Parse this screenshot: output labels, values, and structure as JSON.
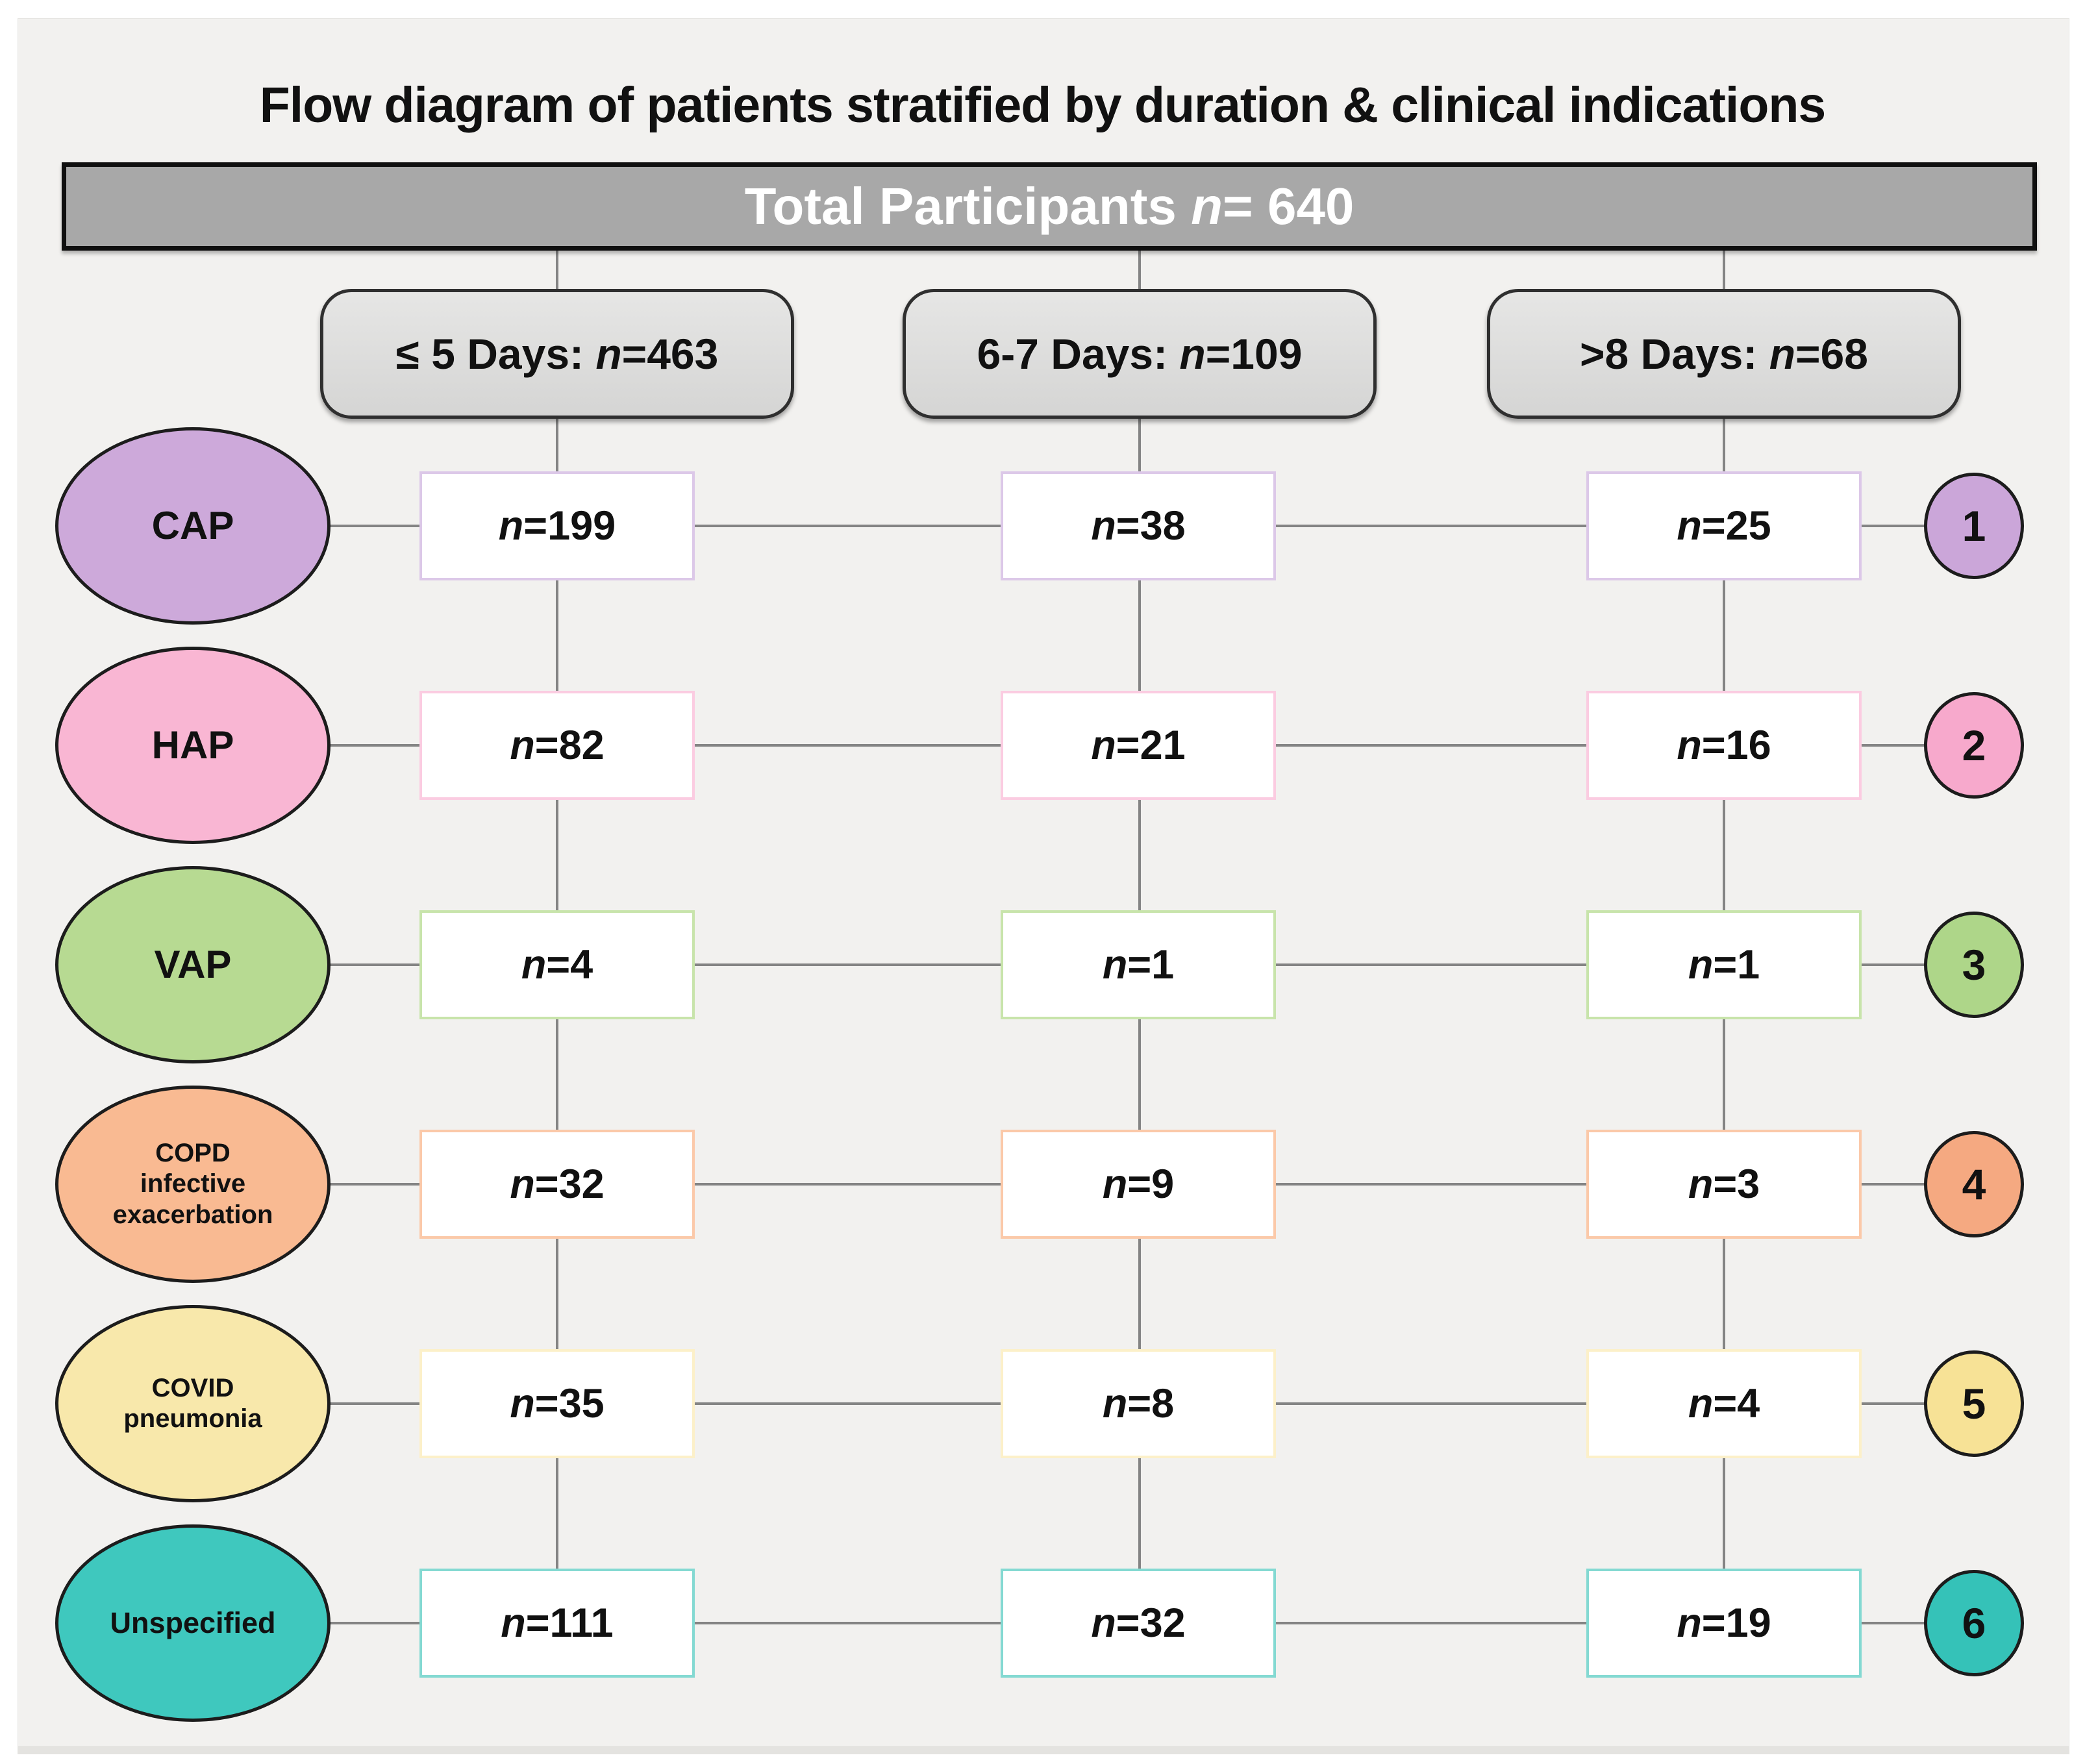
{
  "title": "Flow diagram of patients stratified by duration & clinical indications",
  "banner": {
    "prefix": "Total Participants ",
    "n_value": "n= 640"
  },
  "duration_groups": [
    {
      "prefix": "≤ 5 Days: ",
      "n_value": "n=463"
    },
    {
      "prefix": "6-7 Days: ",
      "n_value": "n=109"
    },
    {
      "prefix": ">8 Days: ",
      "n_value": "n=68"
    }
  ],
  "rows": [
    {
      "label_lines": [
        "CAP"
      ],
      "number": "1",
      "ellipse_fill": "#cda9da",
      "circle_fill": "#cba6d9",
      "box_border": "#dcc8e8",
      "cells": [
        "n=199",
        "n=38",
        "n=25"
      ]
    },
    {
      "label_lines": [
        "HAP"
      ],
      "number": "2",
      "ellipse_fill": "#f9b6d3",
      "circle_fill": "#f7a9cc",
      "box_border": "#fbcce1",
      "cells": [
        "n=82",
        "n=21",
        "n=16"
      ]
    },
    {
      "label_lines": [
        "VAP"
      ],
      "number": "3",
      "ellipse_fill": "#b7da92",
      "circle_fill": "#aed689",
      "box_border": "#c8e4ab",
      "cells": [
        "n=4",
        "n=1",
        "n=1"
      ]
    },
    {
      "label_lines": [
        "COPD",
        "infective",
        "exacerbation"
      ],
      "number": "4",
      "ellipse_fill": "#f9ba92",
      "circle_fill": "#f5a981",
      "box_border": "#fbc9a9",
      "cells": [
        "n=32",
        "n=9",
        "n=3"
      ]
    },
    {
      "label_lines": [
        "COVID",
        "pneumonia"
      ],
      "number": "5",
      "ellipse_fill": "#f8e8ab",
      "circle_fill": "#f7e296",
      "box_border": "#fcf0c9",
      "cells": [
        "n=35",
        "n=8",
        "n=4"
      ]
    },
    {
      "label_lines": [
        "Unspecified"
      ],
      "number": "6",
      "ellipse_fill": "#3fc8be",
      "circle_fill": "#35c2b8",
      "box_border": "#84d9d2",
      "cells": [
        "n=111",
        "n=32",
        "n=19"
      ]
    }
  ],
  "colors": {
    "panel_bg": "#f2f1ef",
    "line": "#848484",
    "text": "#111111",
    "banner_fill": "#a8a8a8",
    "banner_text": "#ffffff",
    "banner_border": "#0f0f0f",
    "duration_border": "#2f2f2f",
    "shape_border": "#1c1c1c"
  }
}
